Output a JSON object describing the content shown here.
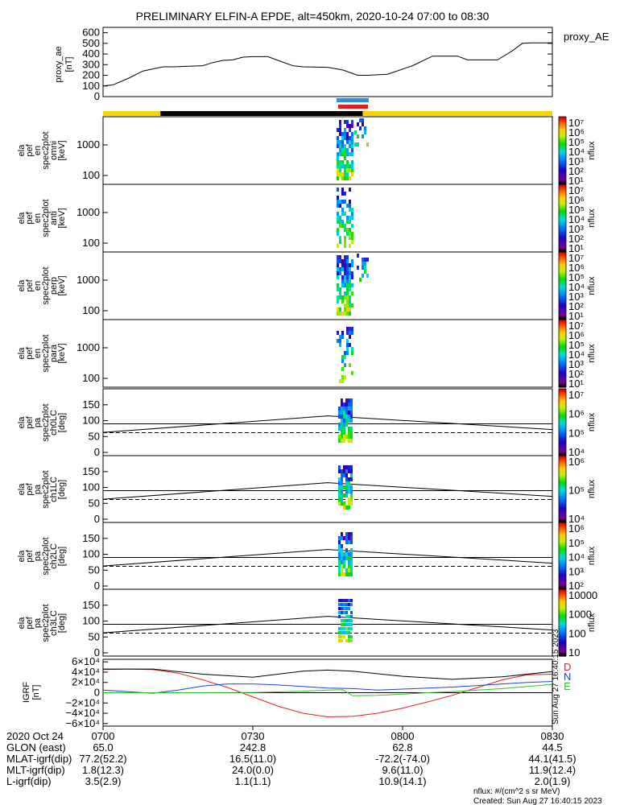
{
  "title": "PRELIMINARY ELFIN-A EPDE, alt=450km, 2020-10-24 07:00 to 08:30",
  "proxy": {
    "ylabel_lines": [
      "proxy_ae",
      "[nT]"
    ],
    "legend": "proxy_AE",
    "ticks": [
      "600",
      "500",
      "400",
      "300",
      "200",
      "100",
      "0"
    ]
  },
  "spec_panels": [
    {
      "ylabel_lines": [
        "ela",
        "pef",
        "en",
        "spec2plot",
        "omni",
        "[keV]"
      ],
      "ticks": [
        "1000",
        "100"
      ],
      "cb_label": "nflux",
      "cb_ticks": [
        "10⁷",
        "10⁶",
        "10⁵",
        "10⁴",
        "10³",
        "10²",
        "10¹"
      ]
    },
    {
      "ylabel_lines": [
        "ela",
        "pef",
        "en",
        "spec2plot",
        "anti",
        "[keV]"
      ],
      "ticks": [
        "1000",
        "100"
      ],
      "cb_label": "nflux",
      "cb_ticks": [
        "10⁷",
        "10⁶",
        "10⁵",
        "10⁴",
        "10³",
        "10²",
        "10¹"
      ]
    },
    {
      "ylabel_lines": [
        "ela",
        "pef",
        "en",
        "spec2plot",
        "perp",
        "[keV]"
      ],
      "ticks": [
        "1000",
        "100"
      ],
      "cb_label": "nflux",
      "cb_ticks": [
        "10⁷",
        "10⁶",
        "10⁵",
        "10⁴",
        "10³",
        "10²",
        "10¹"
      ]
    },
    {
      "ylabel_lines": [
        "ela",
        "pef",
        "en",
        "spec2plot",
        "para",
        "[keV]"
      ],
      "ticks": [
        "1000",
        "100"
      ],
      "cb_label": "nflux",
      "cb_ticks": [
        "10⁷",
        "10⁶",
        "10⁵",
        "10⁴",
        "10³",
        "10²",
        "10¹"
      ]
    }
  ],
  "pa_panels": [
    {
      "ylabel_lines": [
        "ela",
        "pef",
        "pa",
        "spec2plot",
        "ch0LC",
        "[deg]"
      ],
      "ticks": [
        "150",
        "100",
        "50",
        "0"
      ],
      "cb_label": "nflux",
      "cb_ticks": [
        "10⁷",
        "10⁶",
        "10⁵",
        "10⁴"
      ]
    },
    {
      "ylabel_lines": [
        "ela",
        "pef",
        "pa",
        "spec2plot",
        "ch1LC",
        "[deg]"
      ],
      "ticks": [
        "150",
        "100",
        "50",
        "0"
      ],
      "cb_label": "nflux",
      "cb_ticks": [
        "10⁶",
        "10⁵",
        "10⁴"
      ]
    },
    {
      "ylabel_lines": [
        "ela",
        "pef",
        "pa",
        "spec2plot",
        "ch2LC",
        "[deg]"
      ],
      "ticks": [
        "150",
        "100",
        "50",
        "0"
      ],
      "cb_label": "nflux",
      "cb_ticks": [
        "10⁶",
        "10⁵",
        "10⁴",
        "10³",
        "10²"
      ]
    },
    {
      "ylabel_lines": [
        "ela",
        "pef",
        "pa",
        "spec2plot",
        "ch3LC",
        "[deg]"
      ],
      "ticks": [
        "150",
        "100",
        "50",
        "0"
      ],
      "cb_label": "nflux",
      "cb_ticks": [
        "10000",
        "1000",
        "100",
        "10"
      ]
    }
  ],
  "igrf": {
    "ylabel_lines": [
      "IGRF",
      "[nT]"
    ],
    "ticks": [
      "6×10⁴",
      "4×10⁴",
      "2×10⁴",
      "0",
      "−2×10⁴",
      "−4×10⁴",
      "−6×10⁴"
    ],
    "legend": [
      {
        "label": "D",
        "color": "#e02020"
      },
      {
        "label": "N",
        "color": "#2040e0"
      },
      {
        "label": "E",
        "color": "#30c030"
      }
    ],
    "stamp": "Sun Aug 27 16:40:15 2023"
  },
  "orbit_table": {
    "row_labels": [
      "2020 Oct 24",
      "GLON (east)",
      "MLAT-igrf(dip)",
      "MLT-igrf(dip)",
      "L-igrf(dip)"
    ],
    "columns": [
      {
        "time": "0700",
        "values": [
          "65.0",
          "77.2(52.2)",
          "1.8(12.3)",
          "3.5(2.9)"
        ]
      },
      {
        "time": "0730",
        "values": [
          "242.8",
          "16.5(11.0)",
          "24.0(0.0)",
          "1.1(1.1)"
        ]
      },
      {
        "time": "0800",
        "values": [
          "62.8",
          "-72.2(-74.0)",
          "9.6(11.0)",
          "10.9(14.1)"
        ]
      },
      {
        "time": "0830",
        "values": [
          "44.5",
          "44.1(41.5)",
          "11.9(12.4)",
          "2.0(1.9)"
        ]
      }
    ]
  },
  "footer": {
    "units": "nflux: #/(cm^2 s sr MeV)",
    "created": "Created: Sun Aug 27 16:40:15 2023"
  },
  "colors": {
    "day_bar": "#f5d400",
    "night_bar": "#000000",
    "science_blue": "#2f8fe0",
    "science_red": "#e02020"
  },
  "chart_data": [
    {
      "type": "line",
      "title": "PRELIMINARY ELFIN-A EPDE, alt=450km, 2020-10-24 07:00 to 08:30",
      "ylabel": "proxy_ae [nT]",
      "legend": "proxy_AE",
      "ylim": [
        0,
        650
      ],
      "x_minutes_after_0700": [
        0,
        2,
        5,
        8,
        12,
        14,
        20,
        22,
        24,
        26,
        28,
        30,
        33,
        38,
        40,
        45,
        48,
        51,
        53,
        57,
        62,
        66,
        71,
        73,
        76,
        79,
        82,
        84,
        86,
        88,
        90
      ],
      "y": [
        100,
        110,
        170,
        240,
        280,
        280,
        290,
        320,
        340,
        345,
        370,
        375,
        375,
        290,
        280,
        275,
        250,
        200,
        200,
        210,
        290,
        380,
        380,
        345,
        345,
        345,
        430,
        500,
        505,
        505,
        505
      ]
    },
    {
      "type": "line",
      "title": "IGRF",
      "ylabel": "IGRF [nT]",
      "ylim": [
        -65000,
        65000
      ],
      "series": [
        {
          "name": "D",
          "x_minutes_after_0700": [
            0,
            5,
            10,
            15,
            20,
            25,
            30,
            35,
            40,
            45,
            50,
            55,
            60,
            65,
            70,
            75,
            80,
            85,
            90
          ],
          "y": [
            45000,
            46000,
            45000,
            38000,
            25000,
            10000,
            -8000,
            -26000,
            -40000,
            -47000,
            -46000,
            -40000,
            -30000,
            -18000,
            -5000,
            10000,
            25000,
            35000,
            36000
          ]
        },
        {
          "name": "N",
          "x_minutes_after_0700": [
            0,
            5,
            10,
            15,
            20,
            25,
            30,
            35,
            40,
            45,
            50,
            55,
            60,
            65,
            70,
            75,
            80,
            85,
            90
          ],
          "y": [
            5000,
            2000,
            -1000,
            5000,
            13000,
            17000,
            17000,
            15000,
            12000,
            9000,
            8000,
            5000,
            7000,
            9000,
            11000,
            14000,
            17000,
            20000,
            22000
          ]
        },
        {
          "name": "E",
          "x_minutes_after_0700": [
            0,
            5,
            10,
            15,
            20,
            25,
            30,
            35,
            40,
            45,
            48,
            50,
            55,
            60,
            65,
            70,
            75,
            80,
            85,
            90
          ],
          "y": [
            0,
            0,
            0,
            0,
            0,
            200,
            500,
            1500,
            3000,
            5000,
            6000,
            -6000,
            -5000,
            -3000,
            0,
            2000,
            5000,
            8000,
            12000,
            16000
          ]
        },
        {
          "name": "total",
          "x_minutes_after_0700": [
            0,
            10,
            20,
            30,
            40,
            45,
            50,
            60,
            70,
            80,
            90
          ],
          "y": [
            46000,
            46000,
            36000,
            30000,
            42000,
            44000,
            42000,
            32000,
            26000,
            31000,
            41000
          ]
        }
      ]
    }
  ]
}
